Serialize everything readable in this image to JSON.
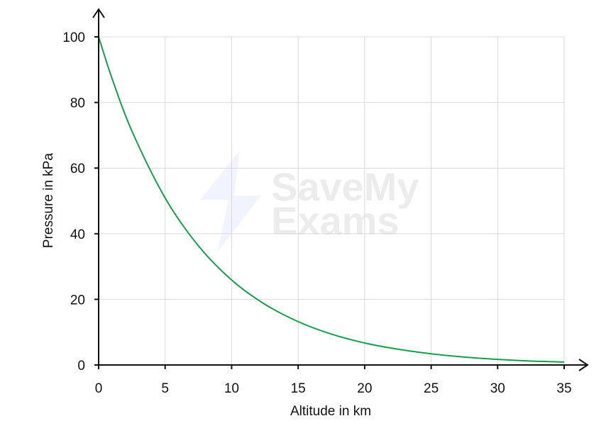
{
  "chart_data": {
    "type": "line",
    "title": "",
    "xlabel": "Altitude in km",
    "ylabel": "Pressure in kPa",
    "xlim": [
      0,
      35
    ],
    "ylim": [
      0,
      100
    ],
    "xticks": [
      "0",
      "5",
      "10",
      "15",
      "20",
      "25",
      "30",
      "35"
    ],
    "yticks": [
      "0",
      "20",
      "40",
      "60",
      "80",
      "100"
    ],
    "grid": true,
    "series": [
      {
        "color": "#13a04a",
        "x": [
          0,
          1,
          2.5,
          5,
          7.5,
          10,
          12.5,
          15,
          17.5,
          20,
          22.5,
          25,
          27.5,
          30,
          32.5,
          35
        ],
        "y": [
          100,
          87.4,
          71.3,
          50.9,
          36.3,
          25.9,
          18.5,
          13.2,
          9.4,
          6.7,
          4.8,
          3.4,
          2.4,
          1.7,
          1.2,
          0.9
        ]
      }
    ]
  },
  "watermark": {
    "line1": "SaveMy",
    "line2": "Exams"
  }
}
